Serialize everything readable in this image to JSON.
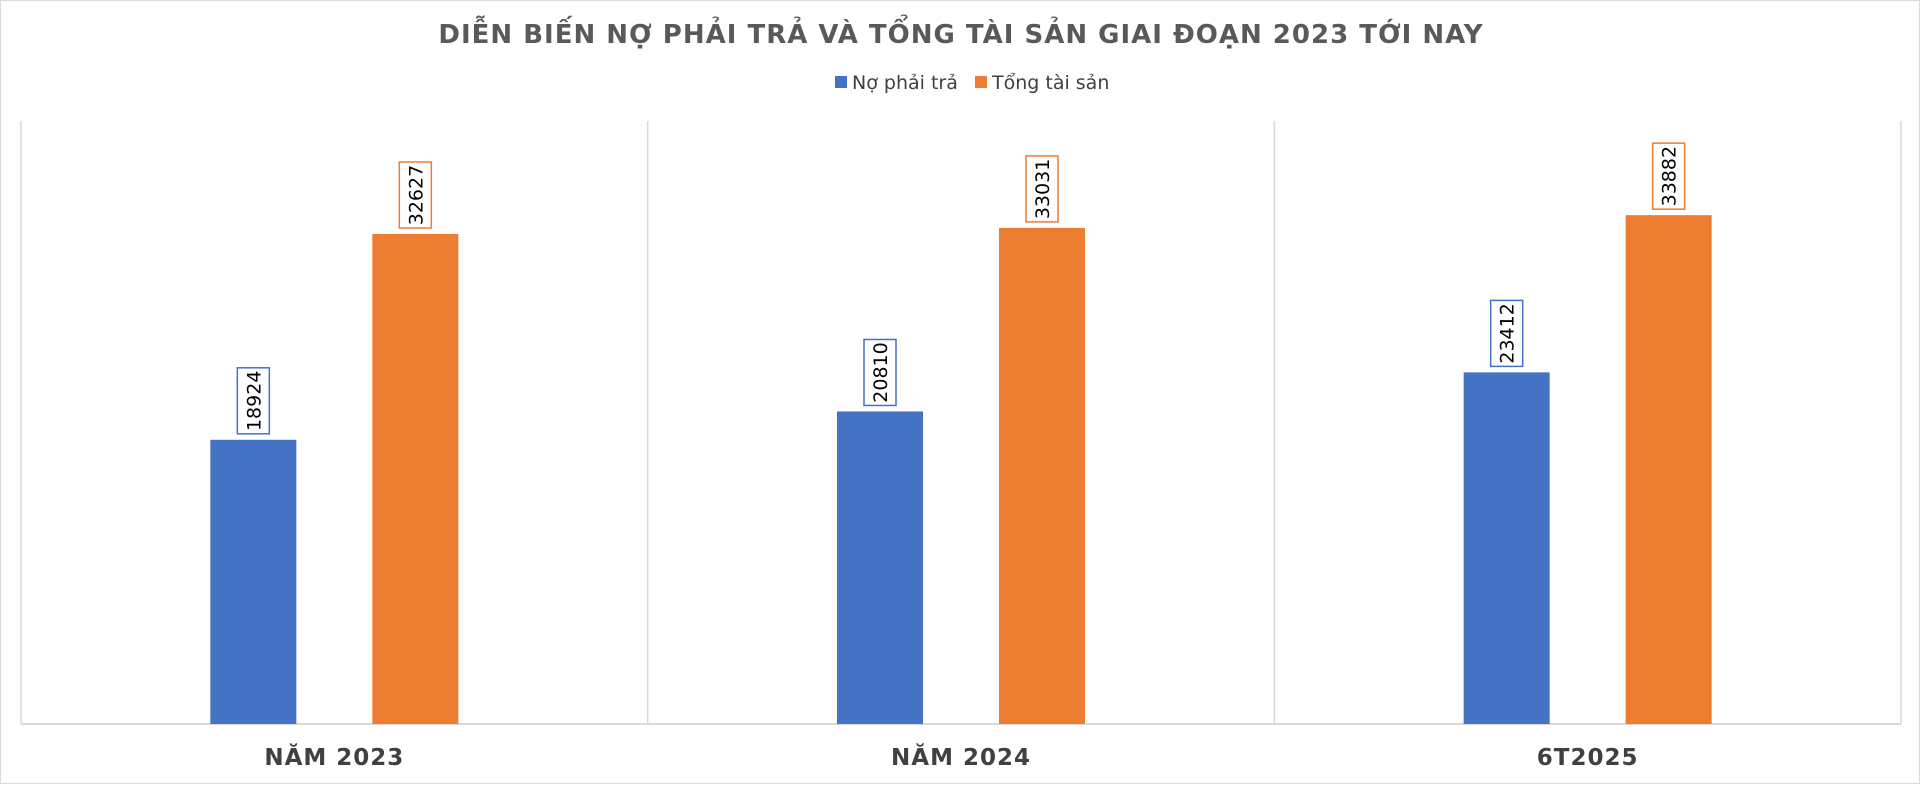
{
  "chart_data": {
    "type": "bar",
    "title": "DIỄN BIẾN NỢ PHẢI TRẢ VÀ TỔNG TÀI SẢN GIAI ĐOẠN 2023 TỚI NAY",
    "categories": [
      "NĂM 2023",
      "NĂM 2024",
      "6T2025"
    ],
    "series": [
      {
        "name": "Nợ phải trả",
        "color": "#4472C4",
        "values": [
          18924,
          20810,
          23412
        ]
      },
      {
        "name": "Tổng tài sản",
        "color": "#ED7D31",
        "values": [
          32627,
          33031,
          33882
        ]
      }
    ],
    "xlabel": "",
    "ylabel": "",
    "ylim": [
      0,
      40000
    ],
    "grid": false,
    "legend_position": "top"
  }
}
